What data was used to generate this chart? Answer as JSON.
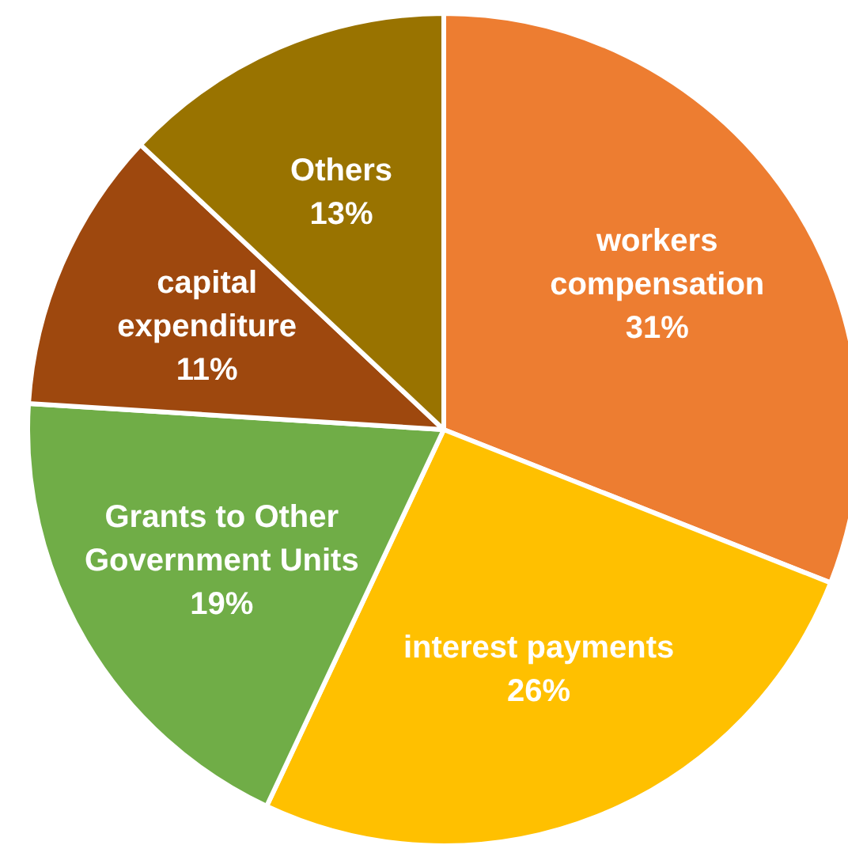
{
  "chart_data": {
    "type": "pie",
    "categories": [
      "workers compensation",
      "interest payments",
      "Grants to Other Government Units",
      "capital expenditure",
      "Others"
    ],
    "values": [
      31,
      26,
      19,
      11,
      13
    ],
    "colors": [
      "#ed7d31",
      "#ffc000",
      "#70ad47",
      "#9e480e",
      "#997300"
    ],
    "value_labels": [
      "31%",
      "26%",
      "19%",
      "11%",
      "13%"
    ]
  }
}
